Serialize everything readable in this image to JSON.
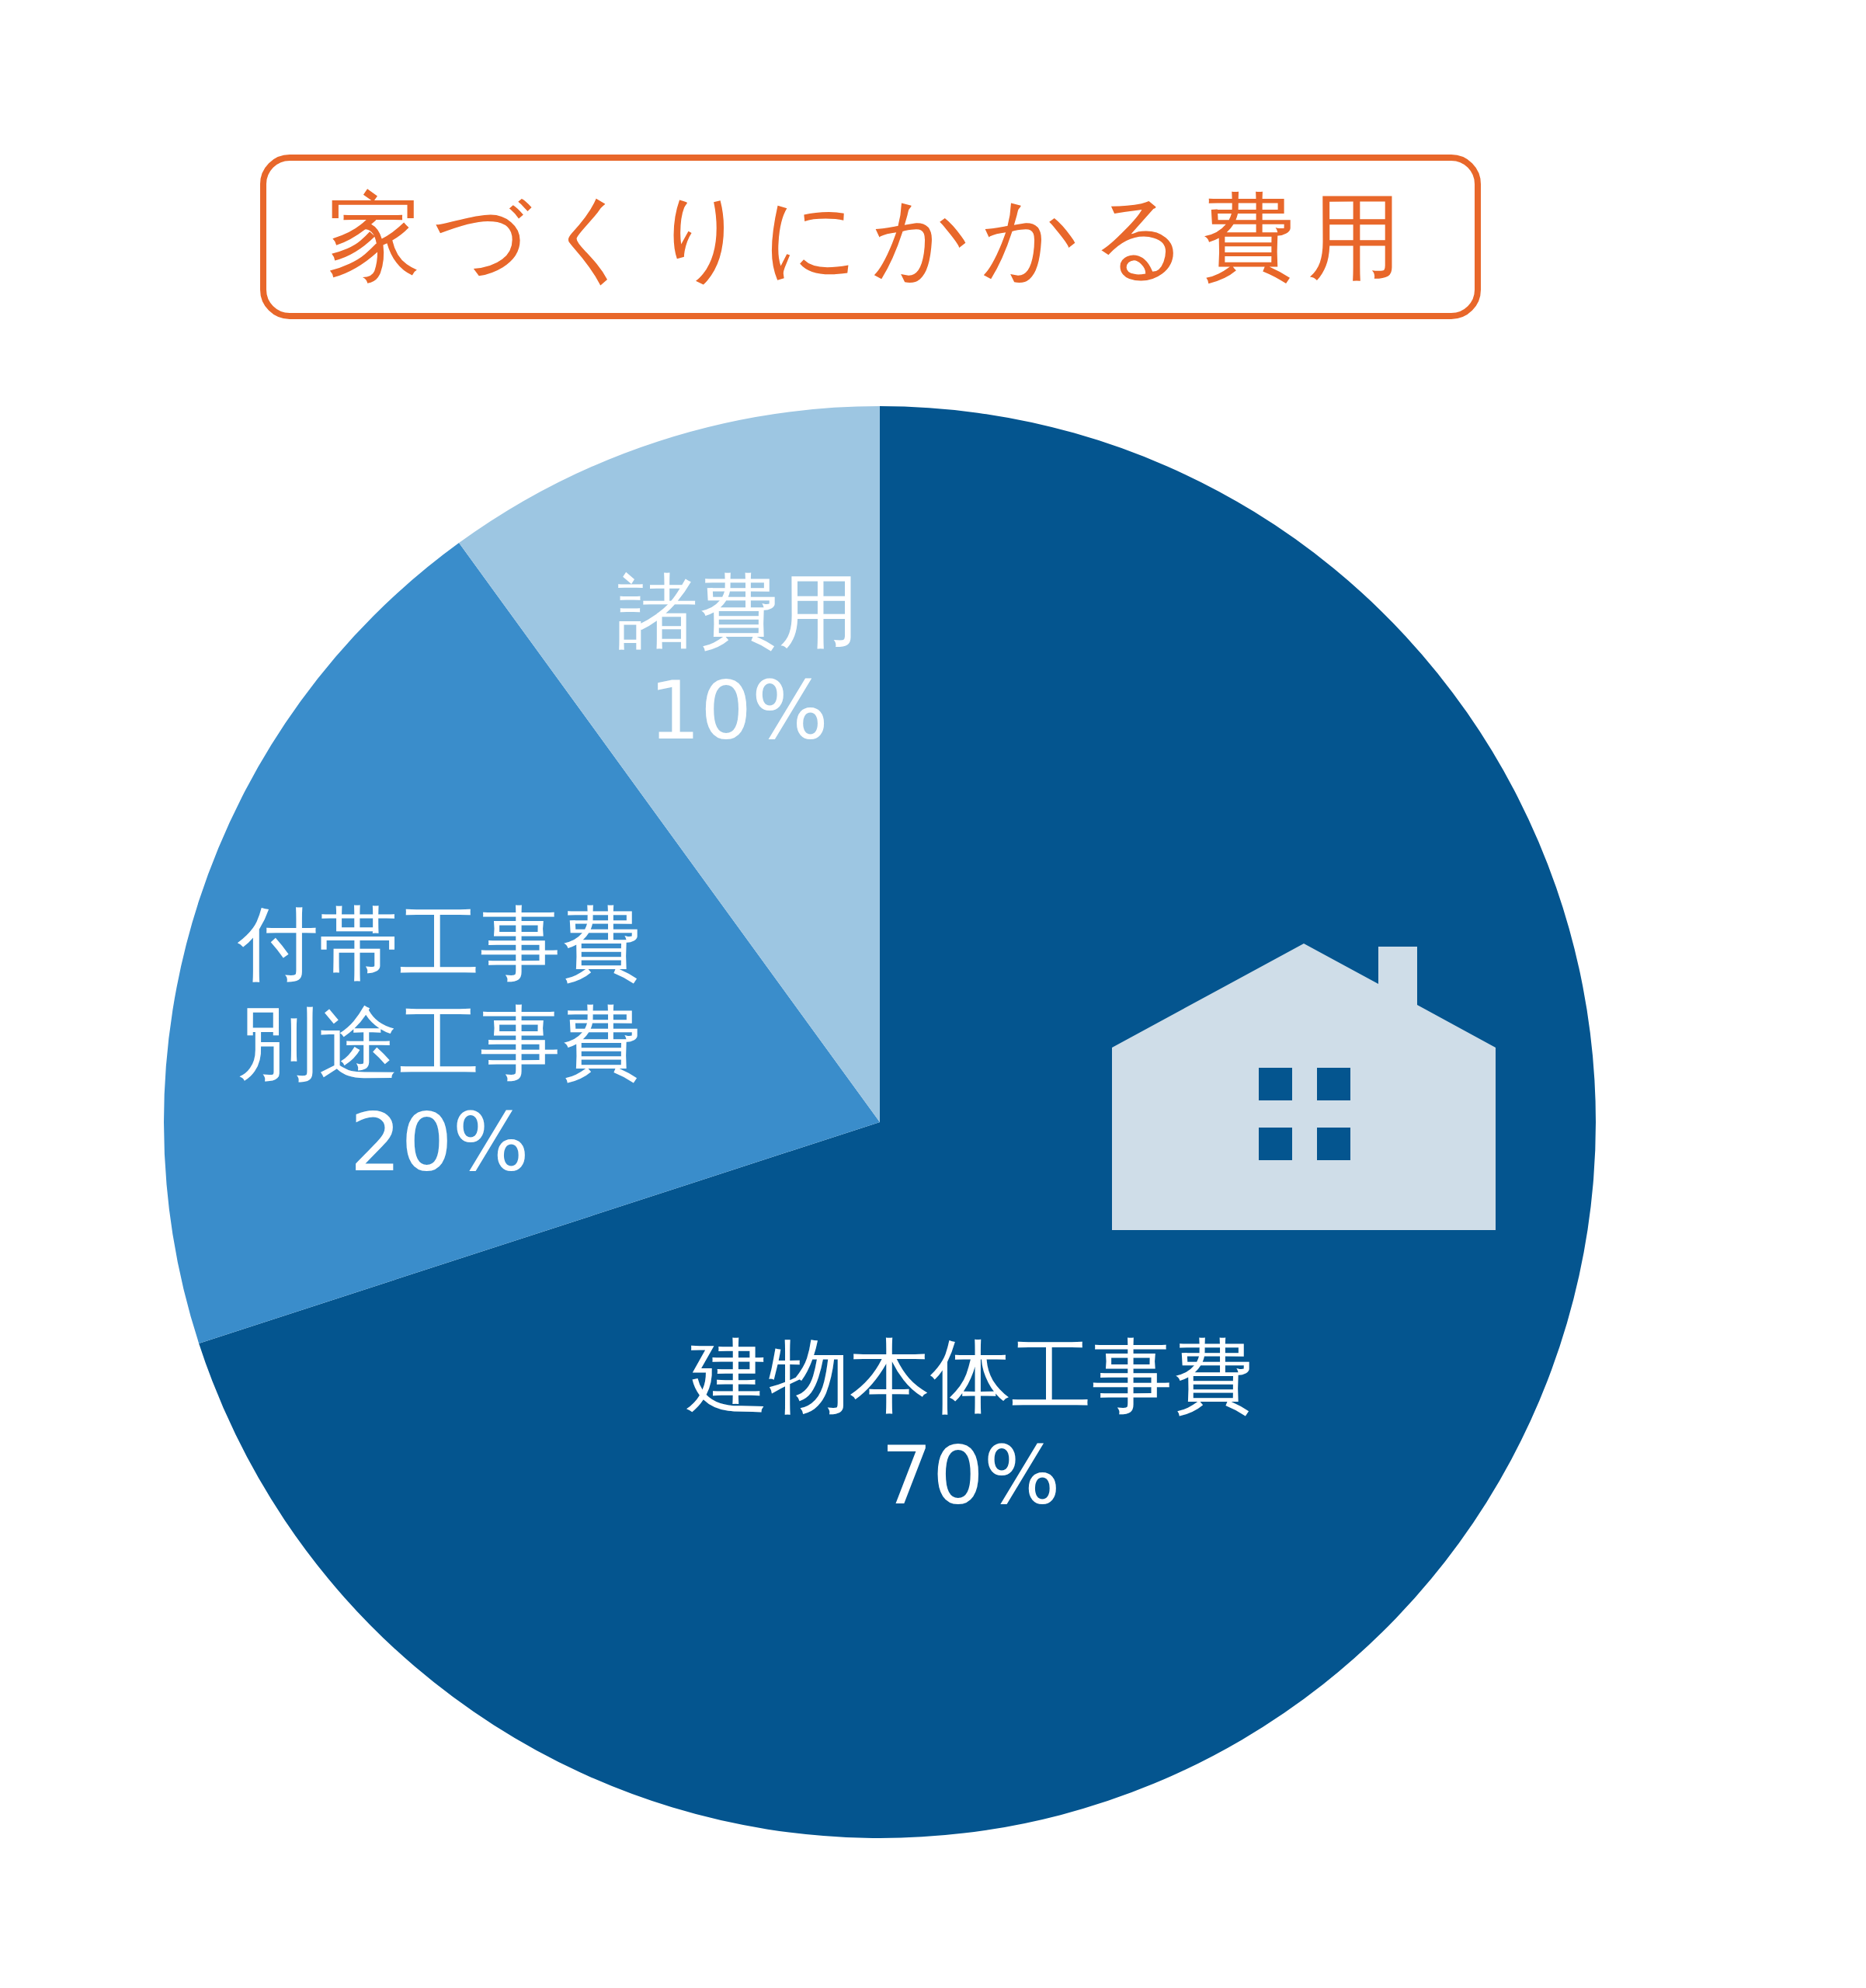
{
  "chart_data": {
    "type": "pie",
    "title": "家づくりにかかる費用",
    "categories": [
      "建物本体工事費",
      "付帯工事費別途工事費",
      "諸費用"
    ],
    "values": [
      70,
      20,
      10
    ],
    "colors": [
      "#04558f",
      "#3a8dcb",
      "#9dc6e2"
    ],
    "value_labels": [
      "70%",
      "20%",
      "10%"
    ]
  }
}
